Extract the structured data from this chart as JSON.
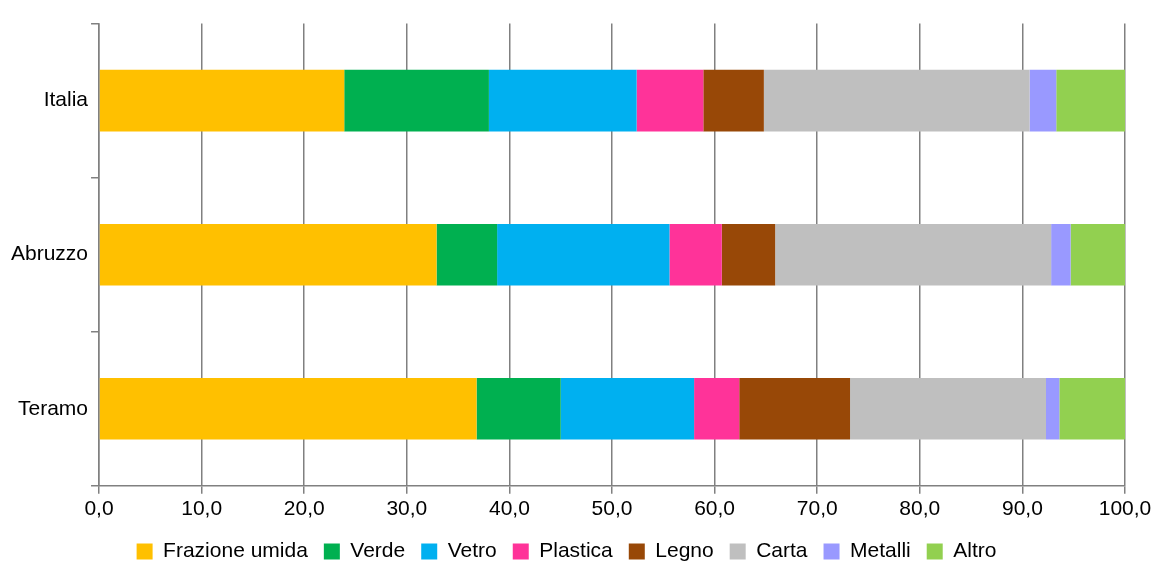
{
  "chart_data": {
    "type": "bar",
    "orientation": "horizontal",
    "stacked": true,
    "categories": [
      "Italia",
      "Abruzzo",
      "Teramo"
    ],
    "series": [
      {
        "name": "Frazione umida",
        "color": "#ffc000",
        "values": [
          23.9,
          32.9,
          36.8
        ]
      },
      {
        "name": "Verde",
        "color": "#00b050",
        "values": [
          14.1,
          5.9,
          8.2
        ]
      },
      {
        "name": "Vetro",
        "color": "#00b0f0",
        "values": [
          14.4,
          16.8,
          13.0
        ]
      },
      {
        "name": "Plastica",
        "color": "#ff3399",
        "values": [
          6.5,
          5.1,
          4.4
        ]
      },
      {
        "name": "Legno",
        "color": "#984807",
        "values": [
          5.9,
          5.2,
          10.8
        ]
      },
      {
        "name": "Carta",
        "color": "#bfbfbf",
        "values": [
          25.9,
          26.9,
          19.1
        ]
      },
      {
        "name": "Metalli",
        "color": "#9999ff",
        "values": [
          2.6,
          1.9,
          1.3
        ]
      },
      {
        "name": "Altro",
        "color": "#92d050",
        "values": [
          6.7,
          5.3,
          6.4
        ]
      }
    ],
    "xlim": [
      0,
      100
    ],
    "xticks": [
      {
        "value": 0,
        "label": "0,0"
      },
      {
        "value": 10,
        "label": "10,0"
      },
      {
        "value": 20,
        "label": "20,0"
      },
      {
        "value": 30,
        "label": "30,0"
      },
      {
        "value": 40,
        "label": "40,0"
      },
      {
        "value": 50,
        "label": "50,0"
      },
      {
        "value": 60,
        "label": "60,0"
      },
      {
        "value": 70,
        "label": "70,0"
      },
      {
        "value": 80,
        "label": "80,0"
      },
      {
        "value": 90,
        "label": "90,0"
      },
      {
        "value": 100,
        "label": "100,0"
      }
    ],
    "grid": "x",
    "legend": "bottom"
  }
}
